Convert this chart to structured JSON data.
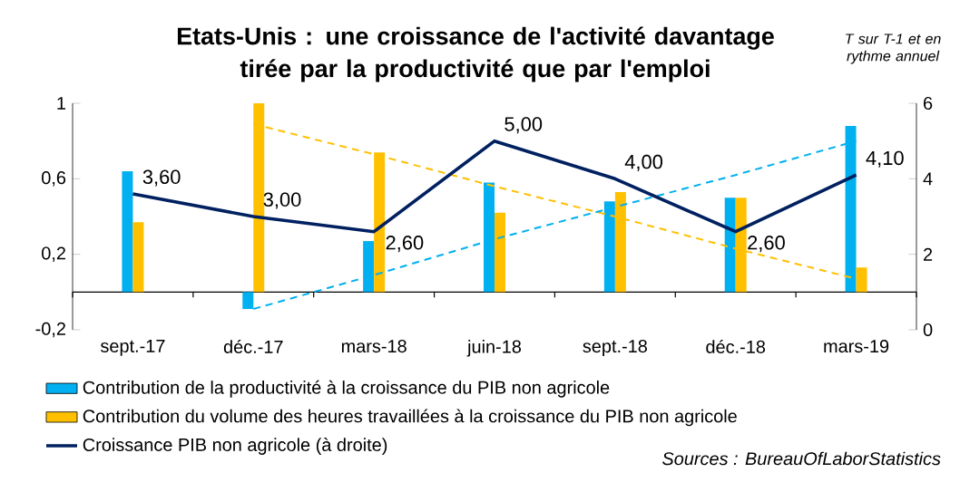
{
  "chart_data": {
    "type": "bar",
    "title": "Etats-Unis : une croissance de l'activité davantage tirée  par la productivité que par l'emploi",
    "categories": [
      "sept.-17",
      "déc.-17",
      "mars-18",
      "juin-18",
      "sept.-18",
      "déc.-18",
      "mars-19"
    ],
    "series": [
      {
        "name": "Contribution de la productivité à la croissance du PIB non agricole",
        "color": "#00b0f0",
        "values": [
          0.64,
          -0.09,
          0.27,
          0.58,
          0.48,
          0.5,
          0.88
        ]
      },
      {
        "name": "Contribution du volume des heures travaillées à la croissance du PIB non agricole",
        "color": "#ffc000",
        "values": [
          0.37,
          1.0,
          0.74,
          0.42,
          0.53,
          0.5,
          0.13
        ]
      },
      {
        "name": "Croissance PIB non agricole (à droite)",
        "type": "line",
        "axis": "y2",
        "color": "#002060",
        "values": [
          3.6,
          3.0,
          2.6,
          5.0,
          4.0,
          2.6,
          4.1
        ],
        "value_labels": [
          "3,60",
          "3,00",
          "2,60",
          "5,00",
          "4,00",
          "2,60",
          "4,10"
        ]
      },
      {
        "type": "line",
        "color": "#ffc000",
        "line_style": "dashed",
        "values": [
          null,
          0.89,
          0.73,
          0.56,
          0.4,
          0.23,
          0.07
        ]
      },
      {
        "type": "line",
        "color": "#00b0f0",
        "line_style": "dashed",
        "values": [
          null,
          -0.09,
          0.09,
          0.28,
          0.45,
          0.62,
          0.8
        ]
      }
    ],
    "ylim": [
      -0.2,
      1
    ],
    "yticks": [
      {
        "value": -0.2,
        "label": "-0,2"
      },
      {
        "value": 0.2,
        "label": "0,2"
      },
      {
        "value": 0.6,
        "label": "0,6"
      },
      {
        "value": 1,
        "label": "1"
      }
    ],
    "y2lim": [
      0,
      6
    ],
    "y2ticks": [
      0,
      2,
      4,
      6
    ],
    "legend": "bottom",
    "annotations": [
      "T sur T-1 et en rythme annuel",
      "Sources : BureauOfLaborStatistics"
    ]
  }
}
